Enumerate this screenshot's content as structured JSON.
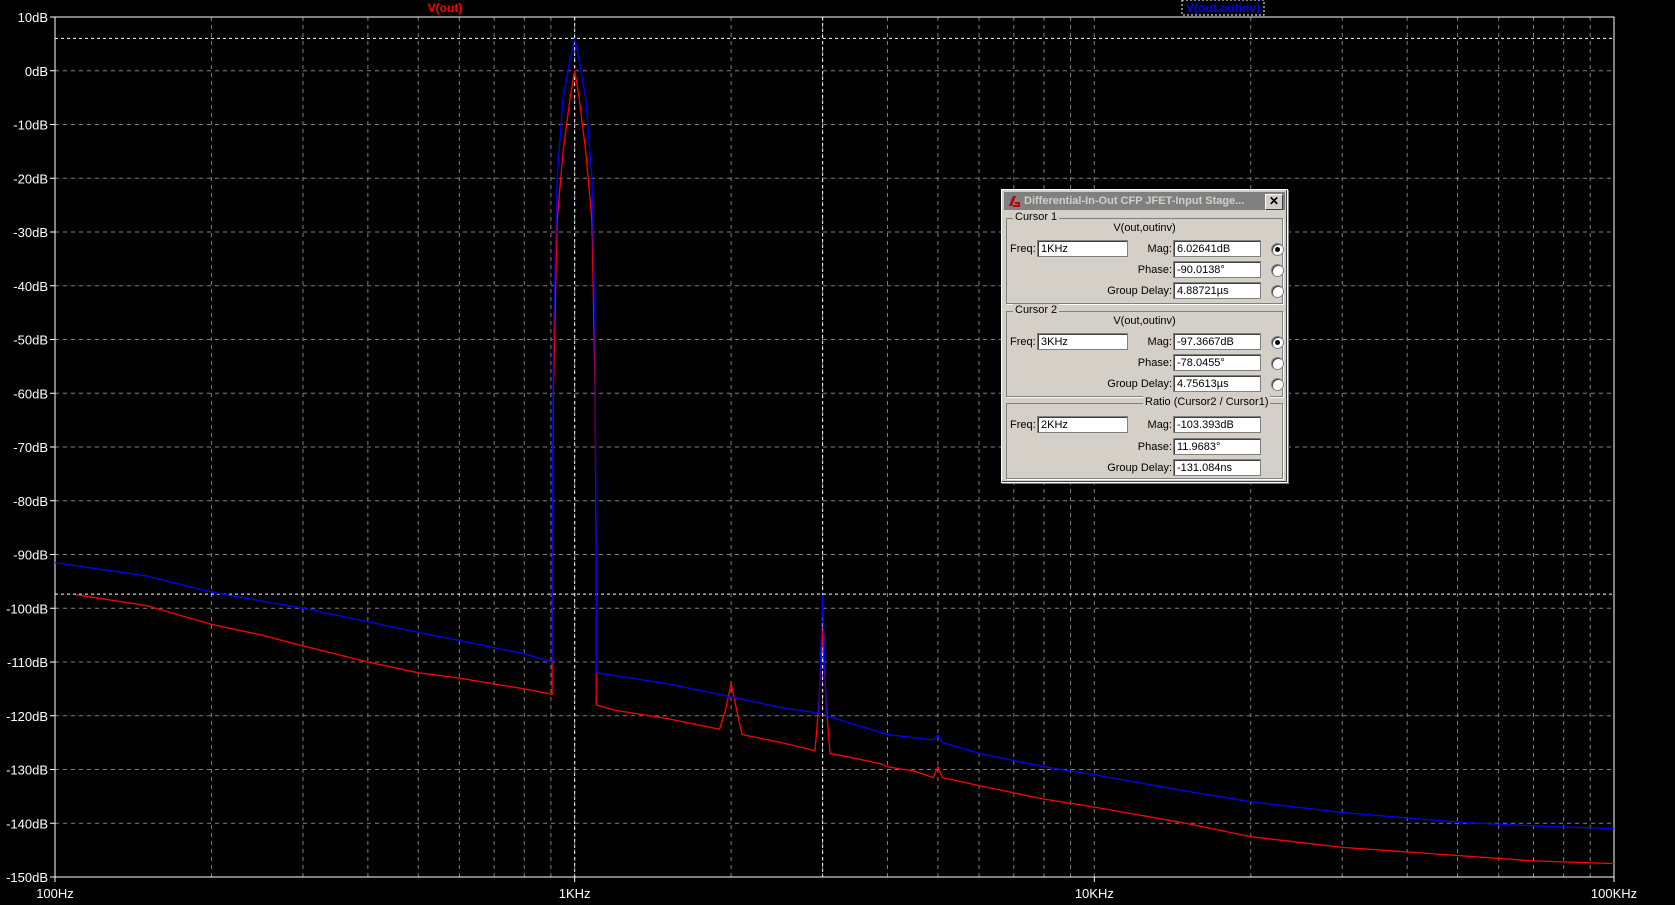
{
  "plot": {
    "trace_labels": [
      {
        "text": "V(out)",
        "color": "#ff0000"
      },
      {
        "text": "V(out,outinv)",
        "color": "#0000ff"
      }
    ],
    "background": "#000000",
    "grid_color": "#808080",
    "axis_color": "#ffffff",
    "cursor_color": "#ffffff"
  },
  "chart_data": {
    "type": "line",
    "xscale": "log",
    "xlim": [
      100,
      100000
    ],
    "ylim": [
      -150,
      10
    ],
    "x_ticks": [
      "100Hz",
      "1KHz",
      "10KHz",
      "100KHz"
    ],
    "y_ticks": [
      "10dB",
      "0dB",
      "-10dB",
      "-20dB",
      "-30dB",
      "-40dB",
      "-50dB",
      "-60dB",
      "-70dB",
      "-80dB",
      "-90dB",
      "-100dB",
      "-110dB",
      "-120dB",
      "-130dB",
      "-140dB",
      "-150dB"
    ],
    "grid": true,
    "cursors": [
      {
        "freq": 1000,
        "mag": 6.02641
      },
      {
        "freq": 3000,
        "mag": -97.3667
      }
    ],
    "series": [
      {
        "name": "V(out)",
        "color": "#ff0000",
        "points": [
          [
            110,
            -97.5
          ],
          [
            150,
            -99.5
          ],
          [
            200,
            -103
          ],
          [
            250,
            -105
          ],
          [
            300,
            -107
          ],
          [
            400,
            -110
          ],
          [
            500,
            -112
          ],
          [
            600,
            -113
          ],
          [
            800,
            -115
          ],
          [
            905,
            -116
          ],
          [
            905,
            -92
          ],
          [
            910,
            -60
          ],
          [
            925,
            -28
          ],
          [
            950,
            -15
          ],
          [
            980,
            -5
          ],
          [
            1000,
            0
          ],
          [
            1020,
            -5
          ],
          [
            1050,
            -15
          ],
          [
            1080,
            -28
          ],
          [
            1095,
            -60
          ],
          [
            1100,
            -92
          ],
          [
            1100,
            -118
          ],
          [
            1200,
            -119
          ],
          [
            1500,
            -120.5
          ],
          [
            1900,
            -122.5
          ],
          [
            1950,
            -119
          ],
          [
            2000,
            -114
          ],
          [
            2050,
            -119
          ],
          [
            2100,
            -123.5
          ],
          [
            2500,
            -125
          ],
          [
            2900,
            -126.5
          ],
          [
            2950,
            -118
          ],
          [
            3000,
            -104
          ],
          [
            3050,
            -118
          ],
          [
            3100,
            -127
          ],
          [
            3500,
            -128
          ],
          [
            3900,
            -129
          ],
          [
            4000,
            -129.5
          ],
          [
            4500,
            -130.3
          ],
          [
            4900,
            -131.5
          ],
          [
            5000,
            -129.5
          ],
          [
            5100,
            -131.5
          ],
          [
            6000,
            -133
          ],
          [
            8000,
            -135.5
          ],
          [
            10000,
            -137
          ],
          [
            15000,
            -140
          ],
          [
            20000,
            -142.5
          ],
          [
            30000,
            -144.5
          ],
          [
            50000,
            -146
          ],
          [
            70000,
            -147
          ],
          [
            100000,
            -147.5
          ]
        ]
      },
      {
        "name": "V(out,outinv)",
        "color": "#0000ff",
        "points": [
          [
            100,
            -91.5
          ],
          [
            150,
            -94
          ],
          [
            200,
            -97
          ],
          [
            300,
            -100
          ],
          [
            400,
            -102.5
          ],
          [
            500,
            -104.5
          ],
          [
            600,
            -106
          ],
          [
            800,
            -108.5
          ],
          [
            905,
            -110
          ],
          [
            905,
            -92
          ],
          [
            910,
            -50
          ],
          [
            925,
            -20
          ],
          [
            950,
            -5
          ],
          [
            980,
            2
          ],
          [
            1000,
            6
          ],
          [
            1020,
            2
          ],
          [
            1050,
            -5
          ],
          [
            1080,
            -20
          ],
          [
            1095,
            -50
          ],
          [
            1100,
            -92
          ],
          [
            1100,
            -112
          ],
          [
            1500,
            -114
          ],
          [
            2000,
            -116.5
          ],
          [
            2500,
            -118.5
          ],
          [
            2950,
            -119.5
          ],
          [
            3000,
            -97.5
          ],
          [
            3050,
            -120
          ],
          [
            4000,
            -123.5
          ],
          [
            4900,
            -124.5
          ],
          [
            5000,
            -123.5
          ],
          [
            5100,
            -125
          ],
          [
            6000,
            -127
          ],
          [
            8000,
            -129.5
          ],
          [
            10000,
            -131
          ],
          [
            15000,
            -134
          ],
          [
            20000,
            -136
          ],
          [
            30000,
            -138
          ],
          [
            50000,
            -139.8
          ],
          [
            70000,
            -140.5
          ],
          [
            100000,
            -141
          ]
        ]
      }
    ]
  },
  "dialog": {
    "title": "Differential-In-Out CFP JFET-Input Stage...",
    "close_symbol": "✕",
    "cursor1": {
      "group_label": "Cursor 1",
      "trace": "V(out,outinv)",
      "freq_label": "Freq:",
      "freq": "1KHz",
      "mag_label": "Mag:",
      "mag": "6.02641dB",
      "phase_label": "Phase:",
      "phase": "-90.0138°",
      "gd_label": "Group Delay:",
      "gd": "4.88721µs"
    },
    "cursor2": {
      "group_label": "Cursor 2",
      "trace": "V(out,outinv)",
      "freq_label": "Freq:",
      "freq": "3KHz",
      "mag_label": "Mag:",
      "mag": "-97.3667dB",
      "phase_label": "Phase:",
      "phase": "-78.0455°",
      "gd_label": "Group Delay:",
      "gd": "4.75613µs"
    },
    "ratio": {
      "group_label": "Ratio (Cursor2 / Cursor1)",
      "freq_label": "Freq:",
      "freq": "2KHz",
      "mag_label": "Mag:",
      "mag": "-103.393dB",
      "phase_label": "Phase:",
      "phase": "11.9683°",
      "gd_label": "Group Delay:",
      "gd": "-131.084ns"
    }
  }
}
